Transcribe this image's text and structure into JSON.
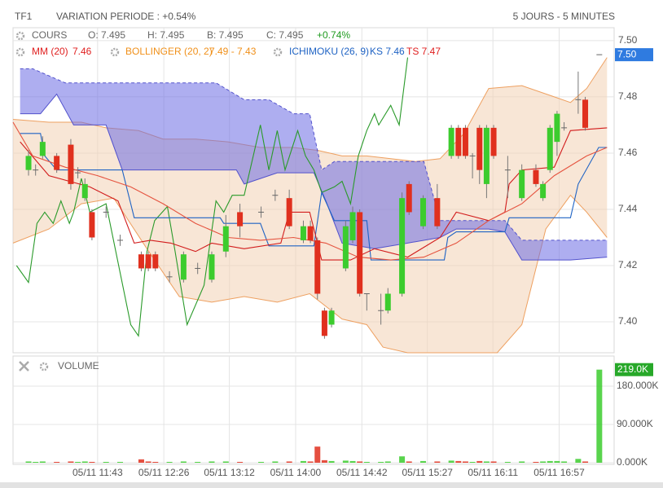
{
  "header": {
    "symbol": "TF1",
    "variation": "VARIATION PERIODE : +0.54%",
    "period": "5 JOURS - 5 MINUTES"
  },
  "chart_data": [
    {
      "type": "candlestick",
      "quote": {
        "label": "COURS",
        "open": "O: 7.495",
        "high": "H: 7.495",
        "low": "B: 7.495",
        "close": "C: 7.495",
        "change": "+0.74%"
      },
      "indicators": {
        "mm": {
          "name": "MM (20)",
          "value": "7.46"
        },
        "bollinger": {
          "name": "BOLLINGER (20, 2)",
          "value": "7.49 - 7.43"
        },
        "ichimoku": {
          "name": "ICHIMOKU (26, 9)",
          "ks": "KS 7.46",
          "ts": "TS 7.47"
        }
      },
      "xlim": [
        -2.2,
        83.1
      ],
      "ylim": [
        7.389,
        7.5046
      ],
      "yticks": [
        {
          "value": 7.4,
          "label": "7.40"
        },
        7.42,
        7.44,
        7.46,
        7.48,
        {
          "value": 7.5,
          "label": "7.50"
        }
      ],
      "grid": true,
      "up_color": "#3ccc2e",
      "down_color": "#e0301e",
      "last": {
        "value": 7.495,
        "label": "7.50"
      },
      "last_color": "#2f7be0",
      "x": [
        0,
        1,
        2,
        4,
        6,
        7,
        8,
        9,
        11,
        13,
        16,
        17,
        18,
        20,
        22,
        24,
        26,
        28,
        30,
        33,
        35,
        37,
        39,
        40,
        41,
        42,
        43,
        45,
        46,
        47,
        48,
        50,
        51,
        53,
        54,
        56,
        58,
        60,
        61,
        62,
        63,
        64,
        65,
        66,
        68,
        70,
        72,
        73,
        74,
        75,
        76,
        78,
        79,
        81
      ],
      "open": [
        7.454,
        7.454,
        7.459,
        7.459,
        7.463,
        7.453,
        7.444,
        7.439,
        7.439,
        7.429,
        7.424,
        7.424,
        7.424,
        7.416,
        7.415,
        7.419,
        7.415,
        7.425,
        7.439,
        7.439,
        7.445,
        7.444,
        7.429,
        7.434,
        7.429,
        7.404,
        7.399,
        7.419,
        7.429,
        7.439,
        7.41,
        7.404,
        7.404,
        7.41,
        7.449,
        7.434,
        7.444,
        7.459,
        7.469,
        7.469,
        7.459,
        7.469,
        7.449,
        7.469,
        7.454,
        7.444,
        7.454,
        7.444,
        7.454,
        7.464,
        7.469,
        7.479,
        7.479,
        7.495
      ],
      "high": [
        7.461,
        7.456,
        7.466,
        7.46,
        7.465,
        7.455,
        7.451,
        7.44,
        7.441,
        7.431,
        7.425,
        7.425,
        7.425,
        7.418,
        7.425,
        7.421,
        7.425,
        7.438,
        7.442,
        7.441,
        7.447,
        7.447,
        7.436,
        7.436,
        7.43,
        7.405,
        7.405,
        7.436,
        7.441,
        7.44,
        7.41,
        7.41,
        7.412,
        7.446,
        7.45,
        7.445,
        7.449,
        7.47,
        7.47,
        7.47,
        7.46,
        7.47,
        7.47,
        7.47,
        7.459,
        7.456,
        7.456,
        7.45,
        7.47,
        7.475,
        7.471,
        7.489,
        7.48,
        7.495
      ],
      "low": [
        7.452,
        7.452,
        7.458,
        7.453,
        7.447,
        7.451,
        7.443,
        7.429,
        7.437,
        7.427,
        7.418,
        7.418,
        7.418,
        7.414,
        7.414,
        7.417,
        7.414,
        7.423,
        7.43,
        7.437,
        7.443,
        7.433,
        7.428,
        7.428,
        7.408,
        7.394,
        7.398,
        7.418,
        7.428,
        7.409,
        7.404,
        7.399,
        7.403,
        7.409,
        7.438,
        7.433,
        7.433,
        7.458,
        7.458,
        7.458,
        7.451,
        7.449,
        7.444,
        7.458,
        7.444,
        7.443,
        7.448,
        7.443,
        7.453,
        7.459,
        7.468,
        7.474,
        7.468,
        7.495
      ],
      "close": [
        7.459,
        7.454,
        7.464,
        7.454,
        7.449,
        7.453,
        7.449,
        7.43,
        7.439,
        7.429,
        7.419,
        7.419,
        7.419,
        7.416,
        7.424,
        7.419,
        7.424,
        7.434,
        7.434,
        7.439,
        7.445,
        7.434,
        7.434,
        7.429,
        7.41,
        7.395,
        7.404,
        7.434,
        7.439,
        7.41,
        7.41,
        7.404,
        7.41,
        7.444,
        7.439,
        7.444,
        7.434,
        7.469,
        7.459,
        7.459,
        7.459,
        7.454,
        7.469,
        7.459,
        7.454,
        7.454,
        7.449,
        7.449,
        7.469,
        7.474,
        7.469,
        7.479,
        7.469,
        7.495
      ],
      "overlays": [
        {
          "kind": "band",
          "fill": "#f2d2b4",
          "stroke": "#eea060",
          "dashed_upper": false,
          "upper": {
            "x": [
              -2.2,
              2.9,
              7.5,
              11,
              15.6,
              19.1,
              23.7,
              28.3,
              32.9,
              37.6,
              41,
              44.5,
              48,
              51.4,
              54.9,
              58.4,
              61.8,
              65.3,
              70,
              74.6,
              76.9,
              79.2,
              82.1
            ],
            "values": [
              7.472,
              7.471,
              7.471,
              7.469,
              7.468,
              7.465,
              7.465,
              7.464,
              7.462,
              7.462,
              7.461,
              7.459,
              7.459,
              7.458,
              7.457,
              7.458,
              7.467,
              7.483,
              7.484,
              7.48,
              7.478,
              7.483,
              7.494
            ]
          },
          "lower": {
            "x": [
              -2.2,
              2.9,
              7.5,
              12.1,
              16.8,
              21.4,
              26,
              30.6,
              35.3,
              39.9,
              44.5,
              48,
              50.3,
              53.8,
              66.5,
              70,
              73.4,
              76.9,
              79.2,
              82.1
            ],
            "values": [
              7.428,
              7.433,
              7.442,
              7.444,
              7.426,
              7.409,
              7.407,
              7.409,
              7.407,
              7.41,
              7.401,
              7.399,
              7.391,
              7.389,
              7.389,
              7.399,
              7.433,
              7.445,
              7.439,
              7.43
            ]
          }
        },
        {
          "kind": "band",
          "fill": "#6c6ce4",
          "stroke": "#5252cc",
          "dashed_upper": true,
          "upper": {
            "x": [
              -1.2,
              0.6,
              5.2,
              26.6,
              30.6,
              34.1,
              37.6,
              39.9,
              41.6,
              43.4,
              56.1,
              58.4,
              67.6,
              70,
              82.1
            ],
            "values": [
              7.49,
              7.49,
              7.485,
              7.485,
              7.479,
              7.479,
              7.474,
              7.474,
              7.454,
              7.457,
              7.457,
              7.436,
              7.436,
              7.429,
              7.429
            ]
          },
          "lower": {
            "x": [
              -1.2,
              1.7,
              4,
              6.4,
              11,
              13.3,
              29.5,
              30.6,
              35.3,
              40.5,
              42.2,
              44.5,
              49.1,
              53.8,
              58.4,
              60.7,
              65.3,
              67.6,
              70,
              76.9,
              82.1
            ],
            "values": [
              7.474,
              7.474,
              7.481,
              7.47,
              7.47,
              7.454,
              7.454,
              7.449,
              7.453,
              7.453,
              7.443,
              7.428,
              7.426,
              7.428,
              7.43,
              7.433,
              7.433,
              7.432,
              7.422,
              7.422,
              7.423
            ]
          }
        },
        {
          "kind": "line",
          "color": "#2a9a2a",
          "x": [
            -1.7,
            0,
            1.2,
            2.3,
            3.5,
            4.6,
            5.8,
            6.4,
            7.5,
            8.7,
            11,
            14.5,
            15.6,
            16.8,
            17.9,
            19.7,
            20.8,
            22.5,
            24.9,
            26.6,
            27.7,
            28.9,
            30.6,
            32.9,
            34.1,
            35.3,
            36.4,
            38.2,
            39.3,
            40.5,
            41.6,
            43.4,
            44.5,
            45.7,
            46.8,
            48,
            49.1,
            49.7,
            51.4,
            52.6,
            53.8
          ],
          "values": [
            7.42,
            7.414,
            7.435,
            7.439,
            7.435,
            7.443,
            7.435,
            7.439,
            7.451,
            7.439,
            7.442,
            7.399,
            7.395,
            7.425,
            7.436,
            7.441,
            7.425,
            7.399,
            7.413,
            7.443,
            7.439,
            7.445,
            7.445,
            7.47,
            7.454,
            7.468,
            7.454,
            7.468,
            7.459,
            7.454,
            7.446,
            7.448,
            7.45,
            7.442,
            7.459,
            7.468,
            7.474,
            7.47,
            7.477,
            7.47,
            7.494
          ]
        },
        {
          "kind": "line",
          "color": "#1f63c4",
          "x": [
            -1.2,
            1.7,
            2.3,
            4,
            13.3,
            15,
            27.2,
            27.7,
            32.9,
            34.1,
            40.5,
            41.6,
            43.4,
            48,
            48.6,
            59,
            59.5,
            60.7,
            67.6,
            68.2,
            76.9,
            78,
            80.9,
            82.1
          ],
          "values": [
            7.467,
            7.467,
            7.459,
            7.454,
            7.454,
            7.437,
            7.437,
            7.435,
            7.435,
            7.427,
            7.427,
            7.446,
            7.436,
            7.436,
            7.422,
            7.422,
            7.43,
            7.432,
            7.432,
            7.437,
            7.437,
            7.449,
            7.462,
            7.462
          ]
        },
        {
          "kind": "line",
          "color": "#d21c1c",
          "x": [
            -1.2,
            2.9,
            8.7,
            12.7,
            15,
            17.3,
            20.2,
            23.7,
            26,
            30.6,
            35.8,
            37,
            39.9,
            41,
            41.6,
            45.7,
            49.1,
            53.8,
            58.4,
            60.7,
            65.3,
            67.6,
            68.2,
            70,
            74.6,
            76.9,
            82.1
          ],
          "values": [
            7.464,
            7.452,
            7.448,
            7.443,
            7.428,
            7.429,
            7.428,
            7.425,
            7.428,
            7.426,
            7.428,
            7.439,
            7.439,
            7.428,
            7.422,
            7.422,
            7.426,
            7.423,
            7.43,
            7.439,
            7.436,
            7.439,
            7.449,
            7.454,
            7.455,
            7.468,
            7.469
          ]
        },
        {
          "kind": "line",
          "color": "#e5533f",
          "x": [
            -2.2,
            0.6,
            5.2,
            9.8,
            14.5,
            19.1,
            23.7,
            28.3,
            32.9,
            37.6,
            42.2,
            46.8,
            51.4,
            56.1,
            60.7,
            65.3,
            70,
            74.6,
            79.2,
            82.1
          ],
          "values": [
            7.471,
            7.459,
            7.455,
            7.452,
            7.448,
            7.442,
            7.435,
            7.43,
            7.429,
            7.43,
            7.428,
            7.423,
            7.422,
            7.423,
            7.428,
            7.436,
            7.442,
            7.452,
            7.459,
            7.462
          ]
        }
      ]
    },
    {
      "type": "bar",
      "title": "VOLUME",
      "xlim": [
        -2.2,
        83.1
      ],
      "ylim": [
        0,
        251000
      ],
      "xticks": [
        {
          "value": 9.8,
          "label": "05/11 11:43"
        },
        {
          "value": 19.2,
          "label": "05/11 12:26"
        },
        {
          "value": 28.5,
          "label": "05/11 13:12"
        },
        {
          "value": 37.9,
          "label": "05/11 14:00"
        },
        {
          "value": 47.3,
          "label": "05/11 14:42"
        },
        {
          "value": 56.6,
          "label": "05/11 15:27"
        },
        {
          "value": 65.9,
          "label": "05/11 16:11"
        },
        {
          "value": 75.3,
          "label": "05/11 16:57"
        }
      ],
      "yticks": [
        {
          "value": 0,
          "label": "0.000K"
        },
        {
          "value": 90000,
          "label": "90.000K"
        },
        {
          "value": 180000,
          "label": "180.000K"
        }
      ],
      "grid": true,
      "last": {
        "value": 219000,
        "label": "219.0K"
      },
      "last_color": "#27a829",
      "x": [
        0,
        1,
        2,
        4,
        6,
        7,
        8,
        9,
        11,
        13,
        16,
        17,
        18,
        20,
        22,
        24,
        26,
        28,
        30,
        33,
        35,
        37,
        39,
        40,
        41,
        42,
        43,
        45,
        46,
        47,
        48,
        50,
        51,
        53,
        54,
        56,
        58,
        60,
        61,
        62,
        63,
        64,
        65,
        66,
        68,
        70,
        72,
        73,
        74,
        75,
        76,
        78,
        79,
        81
      ],
      "values": [
        3000,
        2000,
        3000,
        2000,
        3000,
        2000,
        3000,
        2000,
        2000,
        2000,
        8000,
        3000,
        2000,
        2000,
        3000,
        2000,
        3000,
        3000,
        2000,
        2000,
        3000,
        3000,
        4000,
        3000,
        38000,
        6000,
        4000,
        5000,
        4000,
        3000,
        2000,
        2000,
        3000,
        15000,
        3000,
        4000,
        3000,
        5000,
        4000,
        3000,
        2000,
        4000,
        3000,
        3000,
        2000,
        3000,
        2000,
        3000,
        4000,
        4000,
        3000,
        9000,
        3000,
        219000
      ]
    }
  ]
}
